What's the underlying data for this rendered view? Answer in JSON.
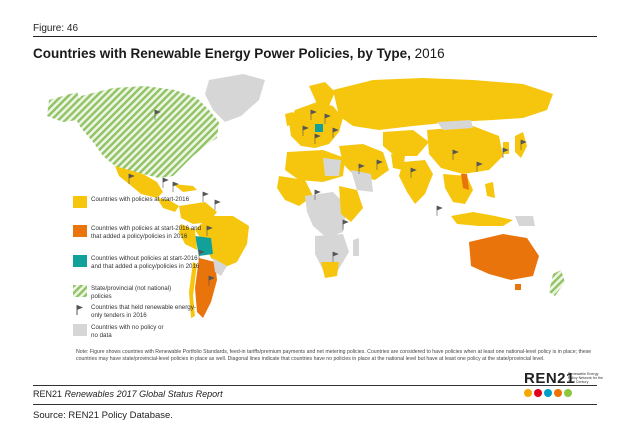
{
  "figure_label": "Figure: 46",
  "title": {
    "bold": "Countries with Renewable Energy Power Policies, by Type,",
    "year": "2016"
  },
  "legend": {
    "items": [
      {
        "key": "start",
        "label": "Countries with policies at start-2016",
        "color": "#f6c60e"
      },
      {
        "key": "added",
        "label": "Countries with policies at start-2016 and that added a policy/policies in 2016",
        "color": "#e9740c"
      },
      {
        "key": "without",
        "label": "Countries without policies at start-2016 and that added a policy/policies in 2016",
        "color": "#12a19a"
      },
      {
        "key": "state",
        "label": "State/provincial (not national) policies",
        "color": "#8fc363"
      },
      {
        "key": "tender",
        "label": "Countries that held renewable energy-only tenders in 2016",
        "color": "#5a5a5a"
      },
      {
        "key": "none",
        "label": "Countries with no policy or no data",
        "color": "#d6d6d6"
      }
    ]
  },
  "note": "Note: Figure shows countries with Renewable Portfolio Standards, feed-in tariffs/premium payments and net metering policies. Countries are considered to have policies when at least one national-level policy is in place; these countries may have state/provincial-level policies in place as well. Diagonal lines indicate that countries have no policies in place at the national level but have at least one policy at the state/provincial level.",
  "footer": {
    "org": "REN21",
    "report": "Renewables 2017 Global Status Report"
  },
  "logo": {
    "word": "REN21",
    "tagline": "Renewable Energy Policy Network for the 21st Century",
    "icon_colors": [
      "#f6a800",
      "#e2001a",
      "#00a0c6",
      "#ee7203",
      "#8dc63f"
    ]
  },
  "source": "Source: REN21 Policy Database."
}
